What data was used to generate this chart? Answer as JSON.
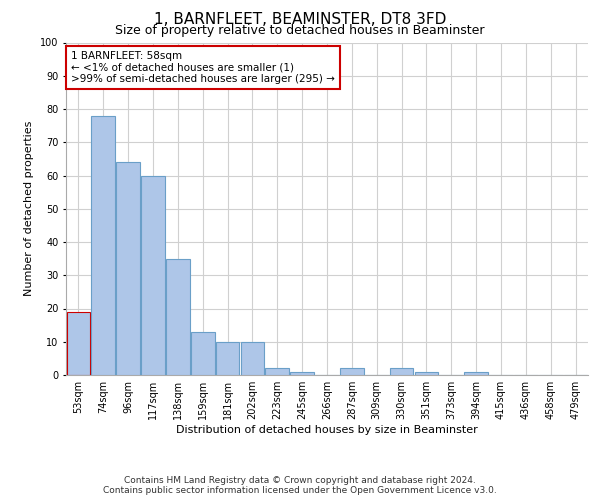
{
  "title": "1, BARNFLEET, BEAMINSTER, DT8 3FD",
  "subtitle": "Size of property relative to detached houses in Beaminster",
  "xlabel": "Distribution of detached houses by size in Beaminster",
  "ylabel": "Number of detached properties",
  "categories": [
    "53sqm",
    "74sqm",
    "96sqm",
    "117sqm",
    "138sqm",
    "159sqm",
    "181sqm",
    "202sqm",
    "223sqm",
    "245sqm",
    "266sqm",
    "287sqm",
    "309sqm",
    "330sqm",
    "351sqm",
    "373sqm",
    "394sqm",
    "415sqm",
    "436sqm",
    "458sqm",
    "479sqm"
  ],
  "values": [
    19,
    78,
    64,
    60,
    35,
    13,
    10,
    10,
    2,
    1,
    0,
    2,
    0,
    2,
    1,
    0,
    1,
    0,
    0,
    0,
    0
  ],
  "bar_color": "#aec6e8",
  "bar_edge_color": "#6a9fc8",
  "highlight_bar_edge_color": "#cc0000",
  "annotation_text": "1 BARNFLEET: 58sqm\n← <1% of detached houses are smaller (1)\n>99% of semi-detached houses are larger (295) →",
  "annotation_box_color": "#ffffff",
  "annotation_box_edge_color": "#cc0000",
  "ylim": [
    0,
    100
  ],
  "yticks": [
    0,
    10,
    20,
    30,
    40,
    50,
    60,
    70,
    80,
    90,
    100
  ],
  "grid_color": "#d0d0d0",
  "background_color": "#ffffff",
  "footer_line1": "Contains HM Land Registry data © Crown copyright and database right 2024.",
  "footer_line2": "Contains public sector information licensed under the Open Government Licence v3.0.",
  "title_fontsize": 11,
  "subtitle_fontsize": 9,
  "xlabel_fontsize": 8,
  "ylabel_fontsize": 8,
  "tick_fontsize": 7,
  "annotation_fontsize": 7.5,
  "footer_fontsize": 6.5
}
